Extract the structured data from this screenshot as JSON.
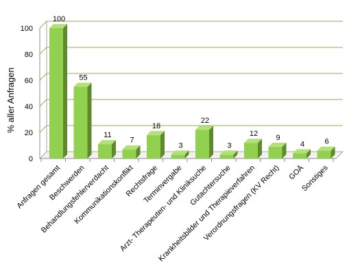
{
  "colors": {
    "bar_front": "#92D050",
    "bar_side": "#5E8A2C",
    "bar_top": "#B4E07A",
    "grid": "#8DB24E",
    "axis": "#8C8C8C"
  },
  "chart_data": {
    "type": "bar",
    "ylabel": "% aller Anfragen",
    "ylim": [
      0,
      100
    ],
    "yticks": [
      0,
      20,
      40,
      60,
      80,
      100
    ],
    "grid": true,
    "categories": [
      "Anfragen gesamt",
      "Beschwerden",
      "Behandlungsfehlerverdacht",
      "Kommunikationskonflikt",
      "Rechtsfrage",
      "Terminvergabe",
      "Arzt- Therapeuten- und Kliniksuche",
      "Gutachtersuche",
      "Krankheitsbilder und Therapieverfahren",
      "Verordnungsfragen (KV Recht)",
      "GOÄ",
      "Sonstiges"
    ],
    "values": [
      100,
      55,
      11,
      7,
      18,
      3,
      22,
      3,
      12,
      9,
      4,
      6
    ],
    "data_labels": [
      "100",
      "55",
      "11",
      "7",
      "18",
      "3",
      "22",
      "3",
      "12",
      "9",
      "4",
      "6"
    ]
  }
}
